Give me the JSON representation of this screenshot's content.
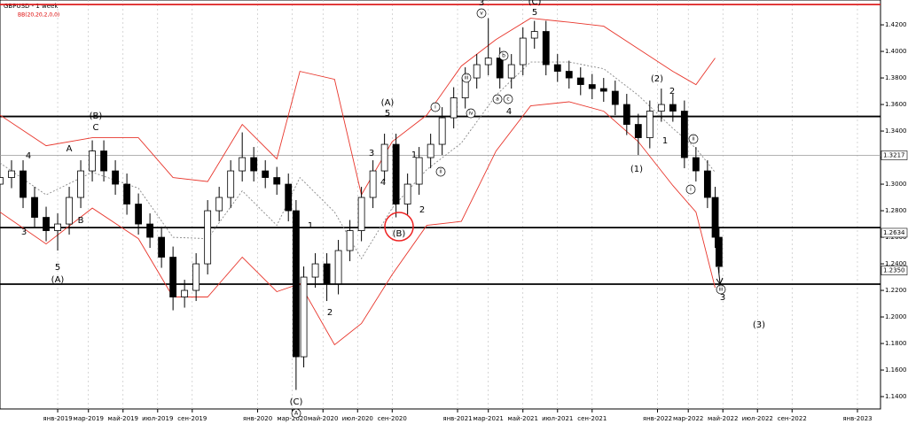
{
  "chart_data": {
    "type": "candlestick",
    "title": "GBPUSD - 1 week",
    "indicator": "BB(20,20,2,0,0)",
    "xlim": [
      -15,
      214
    ],
    "xticks": [
      {
        "value": 0,
        "label": "янв-2019"
      },
      {
        "value": 8,
        "label": "мар-2019"
      },
      {
        "value": 17,
        "label": "май-2019"
      },
      {
        "value": 26,
        "label": "июл-2019"
      },
      {
        "value": 35,
        "label": "сен-2019"
      },
      {
        "value": 52,
        "label": "янв-2020"
      },
      {
        "value": 61,
        "label": "мар-2020"
      },
      {
        "value": 69,
        "label": "май-2020"
      },
      {
        "value": 78,
        "label": "июл-2020"
      },
      {
        "value": 87,
        "label": "сен-2020"
      },
      {
        "value": 104,
        "label": "янв-2021"
      },
      {
        "value": 112,
        "label": "мар-2021"
      },
      {
        "value": 121,
        "label": "май-2021"
      },
      {
        "value": 130,
        "label": "июл-2021"
      },
      {
        "value": 139,
        "label": "сен-2021"
      },
      {
        "value": 156,
        "label": "янв-2022"
      },
      {
        "value": 164,
        "label": "мар-2022"
      },
      {
        "value": 173,
        "label": "май-2022"
      },
      {
        "value": 182,
        "label": "июл-2022"
      },
      {
        "value": 191,
        "label": "сен-2022"
      },
      {
        "value": 208,
        "label": "янв-2023"
      }
    ],
    "ylim": [
      1.1307,
      1.4387
    ],
    "yticks": [
      {
        "value": 1.14,
        "label": "1.1400"
      },
      {
        "value": 1.16,
        "label": "1.1600"
      },
      {
        "value": 1.18,
        "label": "1.1800"
      },
      {
        "value": 1.2,
        "label": "1.2000"
      },
      {
        "value": 1.22,
        "label": "1.2200"
      },
      {
        "value": 1.24,
        "label": "1.2400"
      },
      {
        "value": 1.26,
        "label": "1.2600"
      },
      {
        "value": 1.28,
        "label": "1.2800"
      },
      {
        "value": 1.3,
        "label": "1.3000"
      },
      {
        "value": 1.32,
        "label": "1.3200"
      },
      {
        "value": 1.34,
        "label": "1.3400"
      },
      {
        "value": 1.36,
        "label": "1.3600"
      },
      {
        "value": 1.38,
        "label": "1.3800"
      },
      {
        "value": 1.4,
        "label": "1.4000"
      },
      {
        "value": 1.42,
        "label": "1.4200"
      }
    ],
    "price_labels": [
      1.3217,
      1.2634,
      {
        "value": 1.235,
        "label": "1.2350"
      }
    ],
    "levels": [
      {
        "value": 1.4353,
        "color": "#dd2222"
      },
      {
        "value": 1.351,
        "color": "#000000"
      },
      {
        "value": 1.3217,
        "color": "#999999"
      },
      {
        "value": 1.2673,
        "color": "#000000"
      },
      {
        "value": 1.2247,
        "color": "#000000"
      }
    ],
    "candles": {
      "x": [
        -15,
        -12,
        -9,
        -6,
        -3,
        0,
        3,
        6,
        9,
        12,
        15,
        18,
        21,
        24,
        27,
        30,
        33,
        36,
        39,
        42,
        45,
        48,
        51,
        54,
        57,
        60,
        62,
        64,
        67,
        70,
        73,
        76,
        79,
        82,
        85,
        88,
        91,
        94,
        97,
        100,
        103,
        106,
        109,
        112,
        115,
        118,
        121,
        124,
        127,
        130,
        133,
        136,
        139,
        142,
        145,
        148,
        151,
        154,
        157,
        160,
        163,
        166,
        169,
        171,
        172
      ],
      "open": [
        1.3,
        1.305,
        1.31,
        1.29,
        1.275,
        1.265,
        1.27,
        1.29,
        1.31,
        1.325,
        1.31,
        1.3,
        1.285,
        1.27,
        1.26,
        1.245,
        1.215,
        1.22,
        1.24,
        1.28,
        1.29,
        1.31,
        1.32,
        1.31,
        1.305,
        1.3,
        1.28,
        1.17,
        1.23,
        1.24,
        1.225,
        1.25,
        1.265,
        1.29,
        1.31,
        1.33,
        1.285,
        1.3,
        1.32,
        1.33,
        1.35,
        1.365,
        1.38,
        1.39,
        1.395,
        1.38,
        1.39,
        1.41,
        1.415,
        1.39,
        1.385,
        1.38,
        1.375,
        1.372,
        1.37,
        1.36,
        1.345,
        1.335,
        1.355,
        1.36,
        1.355,
        1.32,
        1.31,
        1.29,
        1.26
      ],
      "high": [
        1.313,
        1.318,
        1.318,
        1.298,
        1.283,
        1.278,
        1.298,
        1.318,
        1.333,
        1.333,
        1.318,
        1.308,
        1.293,
        1.278,
        1.268,
        1.253,
        1.228,
        1.248,
        1.288,
        1.298,
        1.318,
        1.339,
        1.328,
        1.318,
        1.313,
        1.308,
        1.288,
        1.238,
        1.248,
        1.248,
        1.258,
        1.273,
        1.298,
        1.318,
        1.338,
        1.338,
        1.308,
        1.328,
        1.338,
        1.358,
        1.373,
        1.388,
        1.398,
        1.425,
        1.403,
        1.398,
        1.418,
        1.423,
        1.423,
        1.398,
        1.393,
        1.388,
        1.383,
        1.38,
        1.378,
        1.368,
        1.353,
        1.363,
        1.372,
        1.368,
        1.363,
        1.328,
        1.318,
        1.298,
        1.268
      ],
      "low": [
        1.292,
        1.297,
        1.282,
        1.267,
        1.257,
        1.25,
        1.262,
        1.282,
        1.302,
        1.302,
        1.292,
        1.277,
        1.262,
        1.252,
        1.237,
        1.205,
        1.207,
        1.212,
        1.232,
        1.272,
        1.282,
        1.302,
        1.302,
        1.297,
        1.292,
        1.272,
        1.145,
        1.162,
        1.222,
        1.212,
        1.217,
        1.242,
        1.257,
        1.282,
        1.302,
        1.275,
        1.277,
        1.292,
        1.312,
        1.322,
        1.342,
        1.357,
        1.372,
        1.382,
        1.372,
        1.372,
        1.382,
        1.402,
        1.382,
        1.377,
        1.372,
        1.367,
        1.364,
        1.362,
        1.352,
        1.337,
        1.322,
        1.327,
        1.347,
        1.347,
        1.312,
        1.302,
        1.282,
        1.252,
        1.233
      ],
      "close": [
        1.305,
        1.31,
        1.29,
        1.275,
        1.265,
        1.27,
        1.29,
        1.31,
        1.325,
        1.31,
        1.3,
        1.285,
        1.27,
        1.26,
        1.245,
        1.215,
        1.22,
        1.24,
        1.28,
        1.29,
        1.31,
        1.32,
        1.31,
        1.305,
        1.3,
        1.28,
        1.17,
        1.23,
        1.24,
        1.225,
        1.25,
        1.265,
        1.29,
        1.31,
        1.33,
        1.285,
        1.3,
        1.32,
        1.33,
        1.35,
        1.365,
        1.38,
        1.39,
        1.395,
        1.38,
        1.39,
        1.41,
        1.415,
        1.39,
        1.385,
        1.38,
        1.375,
        1.372,
        1.37,
        1.36,
        1.345,
        1.335,
        1.355,
        1.36,
        1.355,
        1.32,
        1.31,
        1.29,
        1.26,
        1.238
      ]
    },
    "bands": {
      "x": [
        -15,
        -3,
        9,
        21,
        30,
        39,
        48,
        57,
        63,
        72,
        79,
        87,
        96,
        105,
        114,
        123,
        133,
        142,
        151,
        160,
        166,
        171
      ],
      "series": [
        {
          "name": "upper",
          "color": "#e8362c",
          "values": [
            1.352,
            1.329,
            1.335,
            1.335,
            1.305,
            1.302,
            1.345,
            1.319,
            1.385,
            1.379,
            1.292,
            1.332,
            1.352,
            1.389,
            1.409,
            1.425,
            1.422,
            1.419,
            1.402,
            1.385,
            1.375,
            1.395
          ]
        },
        {
          "name": "middle",
          "color": "#888888",
          "values": [
            1.316,
            1.292,
            1.309,
            1.297,
            1.26,
            1.259,
            1.295,
            1.269,
            1.305,
            1.279,
            1.244,
            1.282,
            1.311,
            1.331,
            1.367,
            1.392,
            1.392,
            1.387,
            1.367,
            1.342,
            1.327,
            1.309
          ]
        },
        {
          "name": "lower",
          "color": "#e8362c",
          "values": [
            1.279,
            1.255,
            1.282,
            1.259,
            1.215,
            1.215,
            1.245,
            1.219,
            1.225,
            1.179,
            1.195,
            1.232,
            1.269,
            1.272,
            1.325,
            1.359,
            1.362,
            1.355,
            1.332,
            1.299,
            1.279,
            1.222
          ]
        }
      ]
    },
    "annotations": [
      "(B)",
      "C",
      "A",
      "4",
      "B",
      "3",
      "5",
      "(A)",
      "1",
      "2",
      "(C)",
      "A",
      "(A)",
      "5",
      "3",
      "4",
      "1",
      "2",
      "(B)",
      "i",
      "ii",
      "iii",
      "iv",
      "v",
      "3",
      "(C)",
      "5",
      "b",
      "a",
      "c",
      "4",
      "(2)",
      "2",
      "1",
      "(1)",
      "ii",
      "i",
      "iii",
      "3",
      "(3)"
    ]
  }
}
